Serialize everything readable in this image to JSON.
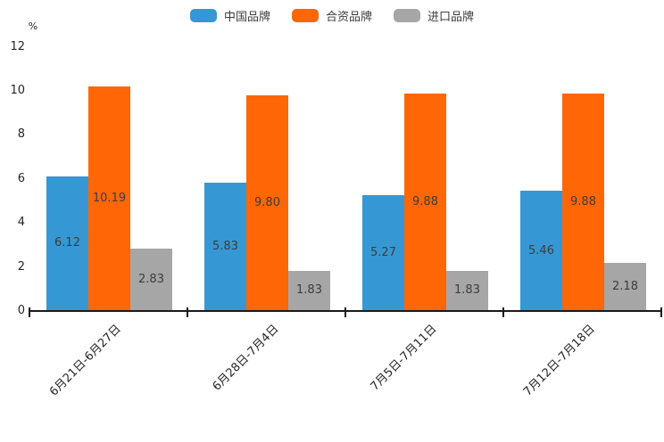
{
  "chart_data": {
    "type": "bar",
    "title": "",
    "categories": [
      "6月21日-6月27日",
      "6月28日-7月4日",
      "7月5日-7月11日",
      "7月12日-7月18日"
    ],
    "series": [
      {
        "name": "中国品牌",
        "color": "#3598d4",
        "values": [
          6.12,
          5.83,
          5.27,
          5.46
        ]
      },
      {
        "name": "合资品牌",
        "color": "#ff6606",
        "values": [
          10.19,
          9.8,
          9.88,
          9.88
        ]
      },
      {
        "name": "进口品牌",
        "color": "#a6a6a6",
        "values": [
          2.83,
          1.83,
          1.83,
          2.18
        ]
      }
    ],
    "value_labels_decimals": 2,
    "xlabel": "",
    "ylabel": "%",
    "ylim": [
      0,
      12
    ],
    "yticks": [
      0,
      2,
      4,
      6,
      8,
      10,
      12
    ],
    "legend_position": "top",
    "grid": false,
    "colors": {
      "background": "#ffffff",
      "axis": "#1a1a1a",
      "tick_label": "#262626",
      "value_label": "#3d3d3d",
      "legend_text": "#3c3c3c"
    }
  }
}
